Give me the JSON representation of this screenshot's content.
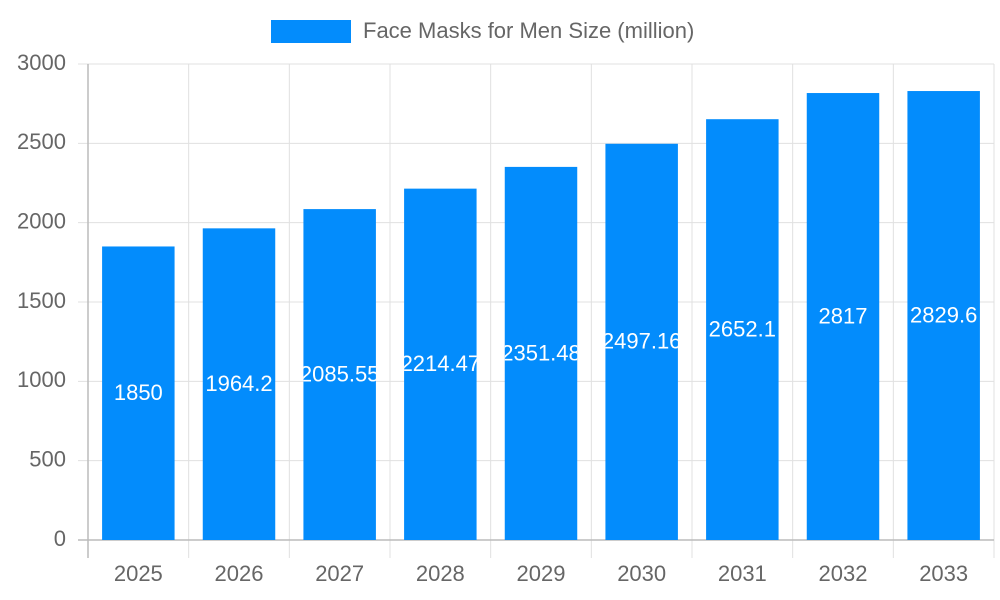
{
  "chart_data": {
    "type": "bar",
    "legend_label": "Face Masks for Men Size (million)",
    "categories": [
      "2025",
      "2026",
      "2027",
      "2028",
      "2029",
      "2030",
      "2031",
      "2032",
      "2033"
    ],
    "values": [
      1850,
      1964.2,
      2085.55,
      2214.47,
      2351.48,
      2497.16,
      2652.1,
      2817,
      2829.6
    ],
    "color": "#038cfc",
    "ylim": [
      0,
      3000
    ],
    "yticks": [
      0,
      500,
      1000,
      1500,
      2000,
      2500,
      3000
    ],
    "grid": true
  }
}
